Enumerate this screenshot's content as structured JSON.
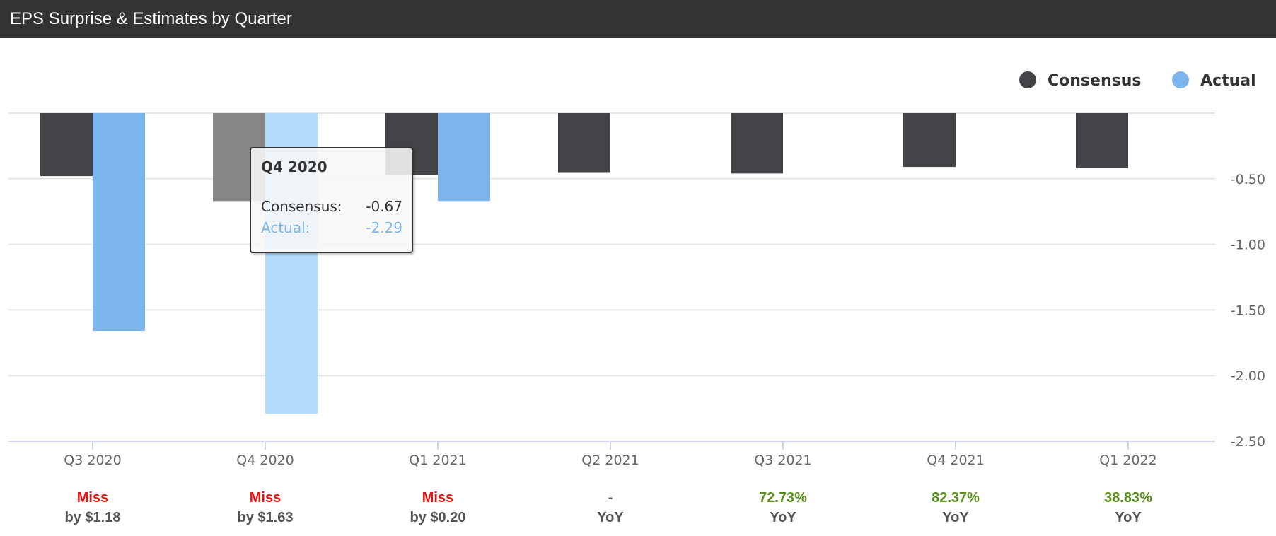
{
  "header": {
    "title": "EPS Surprise & Estimates by Quarter"
  },
  "colors": {
    "consensus": "#434348",
    "actual": "#7cb5ec",
    "consensus_hover": "#88888a",
    "actual_hover": "#b3dcfc",
    "miss": "#ee1111",
    "beat": "#5a8f1c",
    "neutral": "#555555"
  },
  "chart_data": {
    "type": "bar",
    "title": "EPS Surprise & Estimates by Quarter",
    "categories": [
      "Q3 2020",
      "Q4 2020",
      "Q1 2021",
      "Q2 2021",
      "Q3 2021",
      "Q4 2021",
      "Q1 2022"
    ],
    "series": [
      {
        "name": "Consensus",
        "values": [
          -0.48,
          -0.67,
          -0.47,
          -0.45,
          -0.46,
          -0.41,
          -0.42
        ]
      },
      {
        "name": "Actual",
        "values": [
          -1.66,
          -2.29,
          -0.67,
          null,
          null,
          null,
          null
        ]
      }
    ],
    "ylim": [
      -2.5,
      0
    ],
    "yticks": [
      "-0.50",
      "-1.00",
      "-1.50",
      "-2.00",
      "-2.50"
    ],
    "ytick_values": [
      -0.5,
      -1.0,
      -1.5,
      -2.0,
      -2.5
    ],
    "y_axis_side": "right",
    "grid": true,
    "legend_placement": "top-right",
    "legend": [
      "Consensus",
      "Actual"
    ],
    "annotations": [
      {
        "line1": "Miss",
        "line2": "by $1.18",
        "status": "miss"
      },
      {
        "line1": "Miss",
        "line2": "by $1.63",
        "status": "miss"
      },
      {
        "line1": "Miss",
        "line2": "by $0.20",
        "status": "miss"
      },
      {
        "line1": "-",
        "line2": "YoY",
        "status": "neutral"
      },
      {
        "line1": "72.73%",
        "line2": "YoY",
        "status": "beat"
      },
      {
        "line1": "82.37%",
        "line2": "YoY",
        "status": "beat"
      },
      {
        "line1": "38.83%",
        "line2": "YoY",
        "status": "beat"
      }
    ],
    "hovered_index": 1
  },
  "tooltip": {
    "title": "Q4 2020",
    "consensus_label": "Consensus:",
    "consensus_value": "-0.67",
    "actual_label": "Actual:",
    "actual_value": "-2.29"
  }
}
